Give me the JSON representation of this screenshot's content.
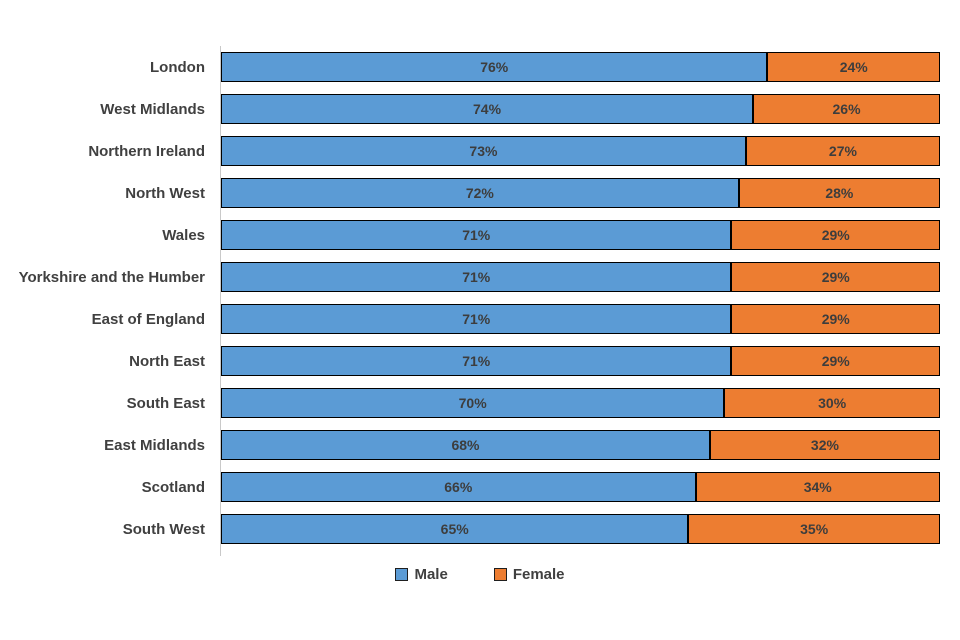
{
  "chart_data": {
    "type": "bar",
    "orientation": "horizontal",
    "stacked": true,
    "title": "",
    "xlabel": "",
    "ylabel": "",
    "xlim": [
      0,
      100
    ],
    "grid": false,
    "legend_position": "bottom",
    "value_label_format": "percent",
    "categories": [
      "London",
      "West Midlands",
      "Northern Ireland",
      "North West",
      "Wales",
      "Yorkshire and the Humber",
      "East of England",
      "North East",
      "South East",
      "East Midlands",
      "Scotland",
      "South West"
    ],
    "series": [
      {
        "name": "Male",
        "color": "#5B9BD5",
        "values": [
          76,
          74,
          73,
          72,
          71,
          71,
          71,
          71,
          70,
          68,
          66,
          65
        ],
        "labels": [
          "76%",
          "74%",
          "73%",
          "72%",
          "71%",
          "71%",
          "71%",
          "71%",
          "70%",
          "68%",
          "66%",
          "65%"
        ]
      },
      {
        "name": "Female",
        "color": "#ED7D31",
        "values": [
          24,
          26,
          27,
          28,
          29,
          29,
          29,
          29,
          30,
          32,
          34,
          35
        ],
        "labels": [
          "24%",
          "26%",
          "27%",
          "28%",
          "29%",
          "29%",
          "29%",
          "29%",
          "30%",
          "32%",
          "34%",
          "35%"
        ]
      }
    ],
    "style": {
      "segment_border_color": "#000000",
      "label_text_color": "#404040",
      "axis_line_color": "#c9c9c9",
      "background_color": "#ffffff"
    }
  }
}
